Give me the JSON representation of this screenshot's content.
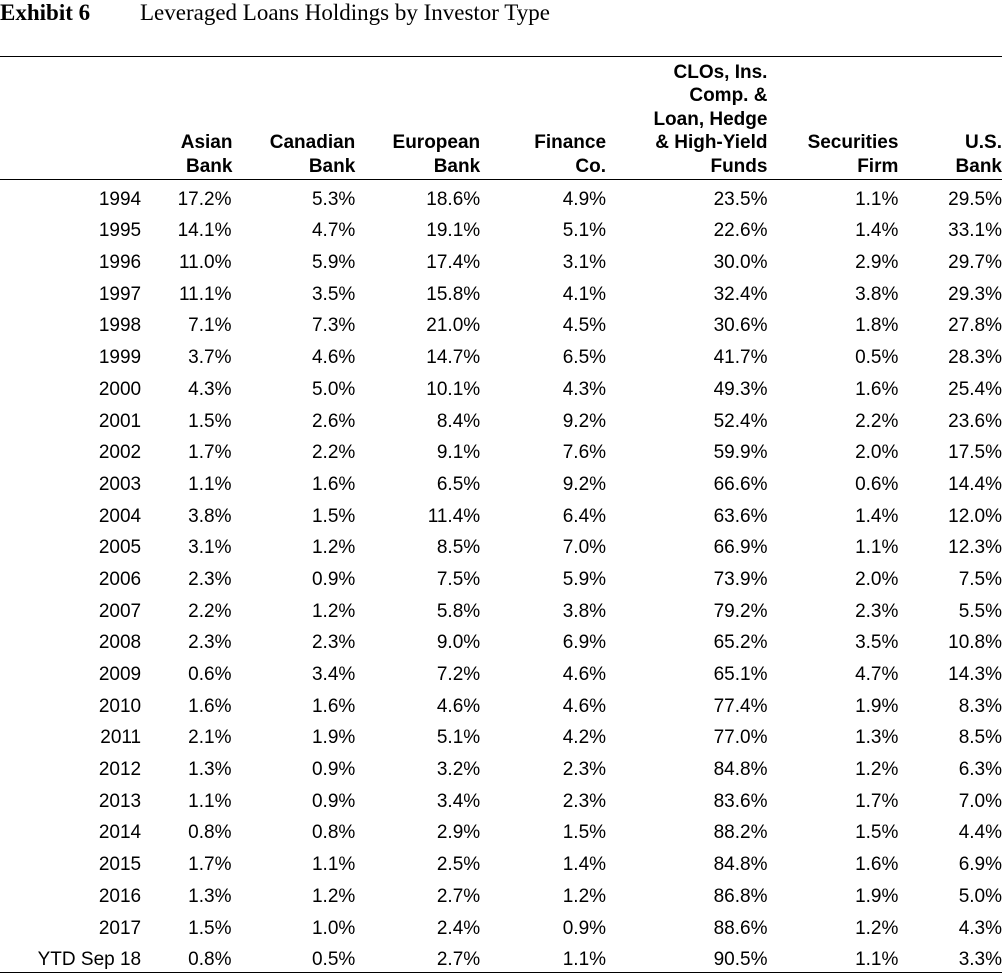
{
  "header": {
    "exhibit_label": "Exhibit 6",
    "exhibit_title": "Leveraged Loans Holdings by Investor Type"
  },
  "chart_data": {
    "type": "table",
    "title": "Leveraged Loans Holdings by Investor Type",
    "columns": [
      "",
      "Asian Bank",
      "Canadian Bank",
      "European Bank",
      "Finance Co.",
      "CLOs, Ins. Comp. & Loan, Hedge & High-Yield Funds",
      "Securities Firm",
      "U.S. Bank"
    ],
    "rows": [
      [
        "1994",
        "17.2%",
        "5.3%",
        "18.6%",
        "4.9%",
        "23.5%",
        "1.1%",
        "29.5%"
      ],
      [
        "1995",
        "14.1%",
        "4.7%",
        "19.1%",
        "5.1%",
        "22.6%",
        "1.4%",
        "33.1%"
      ],
      [
        "1996",
        "11.0%",
        "5.9%",
        "17.4%",
        "3.1%",
        "30.0%",
        "2.9%",
        "29.7%"
      ],
      [
        "1997",
        "11.1%",
        "3.5%",
        "15.8%",
        "4.1%",
        "32.4%",
        "3.8%",
        "29.3%"
      ],
      [
        "1998",
        "7.1%",
        "7.3%",
        "21.0%",
        "4.5%",
        "30.6%",
        "1.8%",
        "27.8%"
      ],
      [
        "1999",
        "3.7%",
        "4.6%",
        "14.7%",
        "6.5%",
        "41.7%",
        "0.5%",
        "28.3%"
      ],
      [
        "2000",
        "4.3%",
        "5.0%",
        "10.1%",
        "4.3%",
        "49.3%",
        "1.6%",
        "25.4%"
      ],
      [
        "2001",
        "1.5%",
        "2.6%",
        "8.4%",
        "9.2%",
        "52.4%",
        "2.2%",
        "23.6%"
      ],
      [
        "2002",
        "1.7%",
        "2.2%",
        "9.1%",
        "7.6%",
        "59.9%",
        "2.0%",
        "17.5%"
      ],
      [
        "2003",
        "1.1%",
        "1.6%",
        "6.5%",
        "9.2%",
        "66.6%",
        "0.6%",
        "14.4%"
      ],
      [
        "2004",
        "3.8%",
        "1.5%",
        "11.4%",
        "6.4%",
        "63.6%",
        "1.4%",
        "12.0%"
      ],
      [
        "2005",
        "3.1%",
        "1.2%",
        "8.5%",
        "7.0%",
        "66.9%",
        "1.1%",
        "12.3%"
      ],
      [
        "2006",
        "2.3%",
        "0.9%",
        "7.5%",
        "5.9%",
        "73.9%",
        "2.0%",
        "7.5%"
      ],
      [
        "2007",
        "2.2%",
        "1.2%",
        "5.8%",
        "3.8%",
        "79.2%",
        "2.3%",
        "5.5%"
      ],
      [
        "2008",
        "2.3%",
        "2.3%",
        "9.0%",
        "6.9%",
        "65.2%",
        "3.5%",
        "10.8%"
      ],
      [
        "2009",
        "0.6%",
        "3.4%",
        "7.2%",
        "4.6%",
        "65.1%",
        "4.7%",
        "14.3%"
      ],
      [
        "2010",
        "1.6%",
        "1.6%",
        "4.6%",
        "4.6%",
        "77.4%",
        "1.9%",
        "8.3%"
      ],
      [
        "2011",
        "2.1%",
        "1.9%",
        "5.1%",
        "4.2%",
        "77.0%",
        "1.3%",
        "8.5%"
      ],
      [
        "2012",
        "1.3%",
        "0.9%",
        "3.2%",
        "2.3%",
        "84.8%",
        "1.2%",
        "6.3%"
      ],
      [
        "2013",
        "1.1%",
        "0.9%",
        "3.4%",
        "2.3%",
        "83.6%",
        "1.7%",
        "7.0%"
      ],
      [
        "2014",
        "0.8%",
        "0.8%",
        "2.9%",
        "1.5%",
        "88.2%",
        "1.5%",
        "4.4%"
      ],
      [
        "2015",
        "1.7%",
        "1.1%",
        "2.5%",
        "1.4%",
        "84.8%",
        "1.6%",
        "6.9%"
      ],
      [
        "2016",
        "1.3%",
        "1.2%",
        "2.7%",
        "1.2%",
        "86.8%",
        "1.9%",
        "5.0%"
      ],
      [
        "2017",
        "1.5%",
        "1.0%",
        "2.4%",
        "0.9%",
        "88.6%",
        "1.2%",
        "4.3%"
      ],
      [
        "YTD Sep 18",
        "0.8%",
        "0.5%",
        "2.7%",
        "1.1%",
        "90.5%",
        "1.1%",
        "3.3%"
      ]
    ]
  }
}
